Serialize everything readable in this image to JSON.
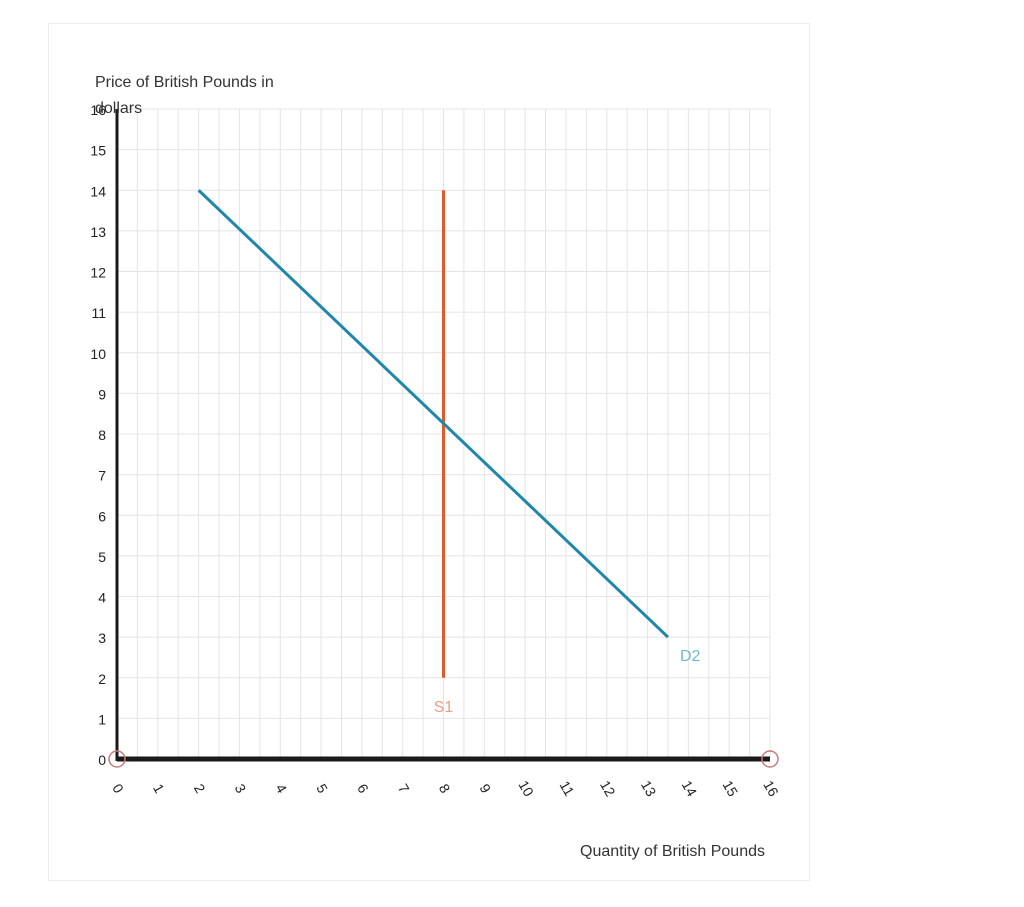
{
  "chart_data": {
    "type": "line",
    "xlabel": "Quantity of British Pounds",
    "ylabel": "Price of British Pounds in dollars",
    "xlim": [
      0,
      16
    ],
    "ylim": [
      0,
      16
    ],
    "x_ticks": [
      "0",
      "1",
      "2",
      "3",
      "4",
      "5",
      "6",
      "7",
      "8",
      "9",
      "10",
      "11",
      "12",
      "13",
      "14",
      "15",
      "16"
    ],
    "y_ticks": [
      "0",
      "1",
      "2",
      "3",
      "4",
      "5",
      "6",
      "7",
      "8",
      "9",
      "10",
      "11",
      "12",
      "13",
      "14",
      "15",
      "16"
    ],
    "grid": true,
    "minor_grid_step": 0.5,
    "axis_handles_at_x": [
      0,
      16
    ],
    "series": [
      {
        "name": "S1",
        "color": "#e05a2b",
        "label_color": "#e8a088",
        "points": [
          [
            8.0,
            14.0
          ],
          [
            8.0,
            2.0
          ]
        ]
      },
      {
        "name": "D2",
        "color": "#1f87ab",
        "label_color": "#6fb8d6",
        "points": [
          [
            2.0,
            14.0
          ],
          [
            13.5,
            3.0
          ]
        ]
      }
    ]
  },
  "colors": {
    "grid": "#e4e4e4",
    "axis": "#1a1a1a",
    "tick_text": "#222222",
    "handle": "#c77b7b"
  }
}
